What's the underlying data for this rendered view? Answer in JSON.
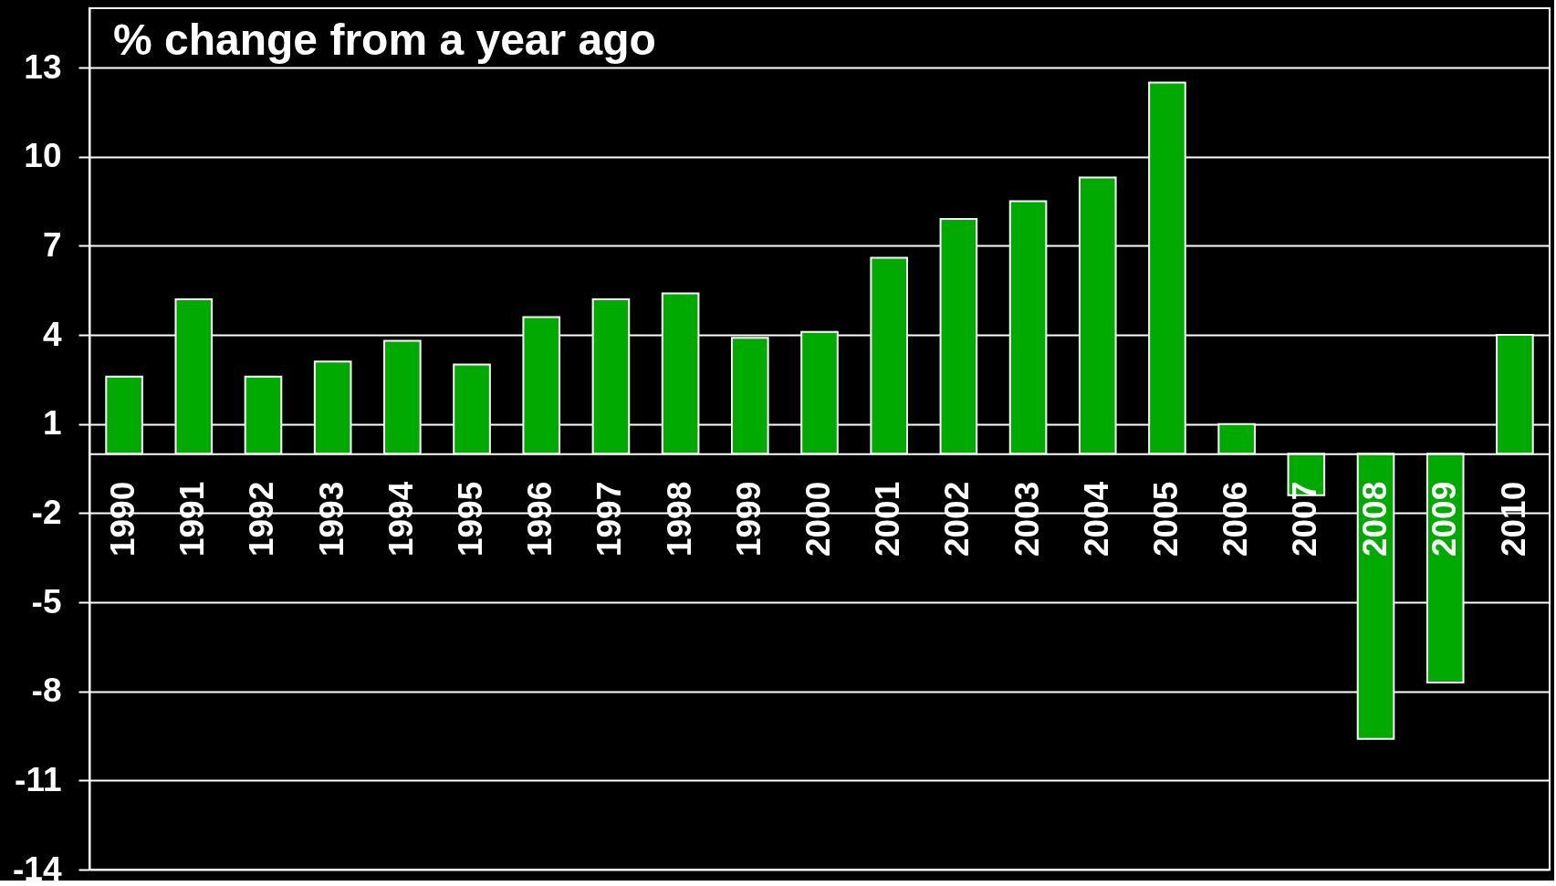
{
  "chart_data": {
    "type": "bar",
    "title": "% change from a year ago",
    "categories": [
      "1990",
      "1991",
      "1992",
      "1993",
      "1994",
      "1995",
      "1996",
      "1997",
      "1998",
      "1999",
      "2000",
      "2001",
      "2002",
      "2003",
      "2004",
      "2005",
      "2006",
      "2007",
      "2008",
      "2009",
      "2010"
    ],
    "values": [
      2.6,
      5.2,
      2.6,
      3.1,
      3.8,
      3.0,
      4.6,
      5.2,
      5.4,
      3.9,
      4.1,
      6.6,
      7.9,
      8.5,
      9.3,
      12.5,
      1.0,
      -1.4,
      -9.6,
      -7.7,
      4.0
    ],
    "color": "#00aa00",
    "ylim": [
      -14,
      15
    ],
    "yticks": [
      -14,
      -11,
      -8,
      -5,
      -2,
      1,
      4,
      7,
      10,
      13
    ],
    "grid": "y"
  }
}
